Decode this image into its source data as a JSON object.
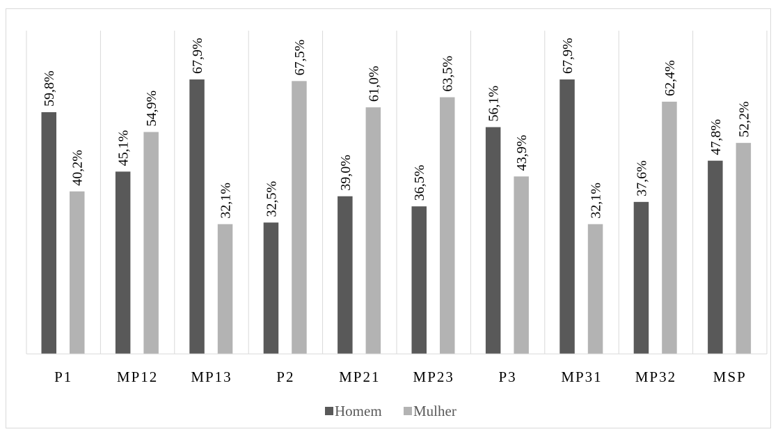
{
  "chart_data": {
    "type": "bar",
    "categories": [
      "P1",
      "MP12",
      "MP13",
      "P2",
      "MP21",
      "MP23",
      "P3",
      "MP31",
      "MP32",
      "MSP"
    ],
    "series": [
      {
        "name": "Homem",
        "color": "#595959",
        "values": [
          59.8,
          45.1,
          67.9,
          32.5,
          39.0,
          36.5,
          56.1,
          67.9,
          37.6,
          47.8
        ],
        "labels": [
          "59,8%",
          "45,1%",
          "67,9%",
          "32,5%",
          "39,0%",
          "36,5%",
          "56,1%",
          "67,9%",
          "37,6%",
          "47,8%"
        ]
      },
      {
        "name": "Mulher",
        "color": "#b3b3b3",
        "values": [
          40.2,
          54.9,
          32.1,
          67.5,
          61.0,
          63.5,
          43.9,
          32.1,
          62.4,
          52.2
        ],
        "labels": [
          "40,2%",
          "54,9%",
          "32,1%",
          "67,5%",
          "61,0%",
          "63,5%",
          "43,9%",
          "32,1%",
          "62,4%",
          "52,2%"
        ]
      }
    ],
    "ylim": [
      0,
      80
    ],
    "grid": "vertical separators between categories",
    "legend": "bottom-center",
    "title": "",
    "xlabel": "",
    "ylabel": ""
  }
}
